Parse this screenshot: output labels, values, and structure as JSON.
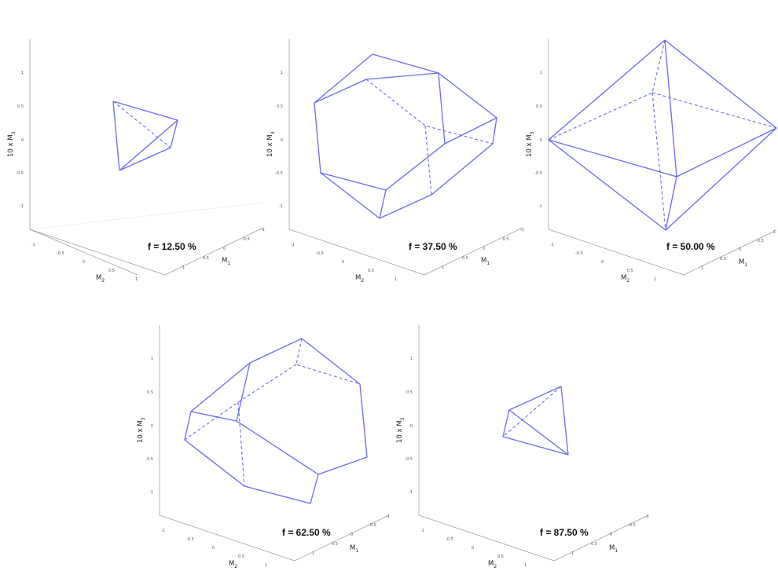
{
  "colors": {
    "edge": "#6a6af0",
    "axis": "#9a9a9a"
  },
  "axis_labels": {
    "z_prefix": "10 x M",
    "z_sub": "3",
    "x": "M",
    "x_sub": "1",
    "y": "M",
    "y_sub": "2"
  },
  "z_ticks": [
    "1",
    "0.5",
    "0",
    "-0.5",
    "-1"
  ],
  "m1_ticks": [
    "1",
    "0.5",
    "0",
    "-0.5",
    "-1"
  ],
  "m2_ticks": [
    "-1",
    "-0.5",
    "0",
    "0.5",
    "1"
  ],
  "panels": [
    {
      "label": "f = 12.50 %",
      "shape": "tetrahedron"
    },
    {
      "label": "f = 37.50 %",
      "shape": "truncated-tetrahedron"
    },
    {
      "label": "f = 50.00 %",
      "shape": "octahedron"
    },
    {
      "label": "f = 62.50 %",
      "shape": "truncated-tetrahedron"
    },
    {
      "label": "f = 87.50 %",
      "shape": "tetrahedron"
    }
  ]
}
